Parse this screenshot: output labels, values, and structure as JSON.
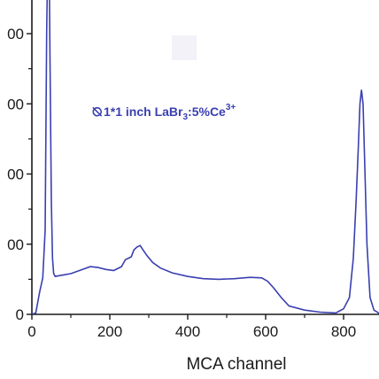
{
  "chart_data": {
    "type": "line",
    "title": "",
    "xlabel": "MCA channel",
    "ylabel": "",
    "xlim": [
      0,
      900
    ],
    "ylim": [
      0,
      1000
    ],
    "x_ticks": [
      0,
      200,
      400,
      600,
      800
    ],
    "x_tick_labels": [
      "0",
      "200",
      "400",
      "600",
      "800"
    ],
    "y_ticks": [
      0,
      250,
      500,
      750,
      1000
    ],
    "y_tick_labels": [
      "0",
      "00",
      "00",
      "00",
      "00"
    ],
    "grid": false,
    "annotation": {
      "prefix": "1*1 inch  LaBr",
      "sub": "3",
      "middle": ":5%Ce",
      "sup": "3+"
    },
    "line_color": "#3a3fb0",
    "series": [
      {
        "x": [
          0,
          10,
          20,
          28,
          34,
          38,
          41,
          44,
          46,
          48,
          50,
          53,
          56,
          60,
          70,
          80,
          100,
          130,
          150,
          170,
          190,
          210,
          230,
          240,
          248,
          255,
          262,
          270,
          278,
          285,
          295,
          310,
          330,
          360,
          400,
          440,
          480,
          520,
          560,
          590,
          605,
          620,
          640,
          660,
          700,
          740,
          780,
          800,
          815,
          825,
          832,
          838,
          842,
          846,
          850,
          855,
          860,
          868,
          878,
          890,
          900
        ],
        "values": [
          0,
          5,
          80,
          130,
          300,
          1000,
          1300,
          1300,
          1000,
          700,
          400,
          200,
          145,
          135,
          138,
          140,
          145,
          160,
          170,
          167,
          160,
          156,
          170,
          195,
          200,
          205,
          230,
          240,
          245,
          230,
          210,
          185,
          165,
          148,
          135,
          127,
          125,
          127,
          132,
          130,
          118,
          95,
          60,
          30,
          15,
          8,
          5,
          20,
          60,
          200,
          400,
          600,
          750,
          800,
          750,
          500,
          250,
          60,
          15,
          5,
          3
        ]
      }
    ]
  }
}
